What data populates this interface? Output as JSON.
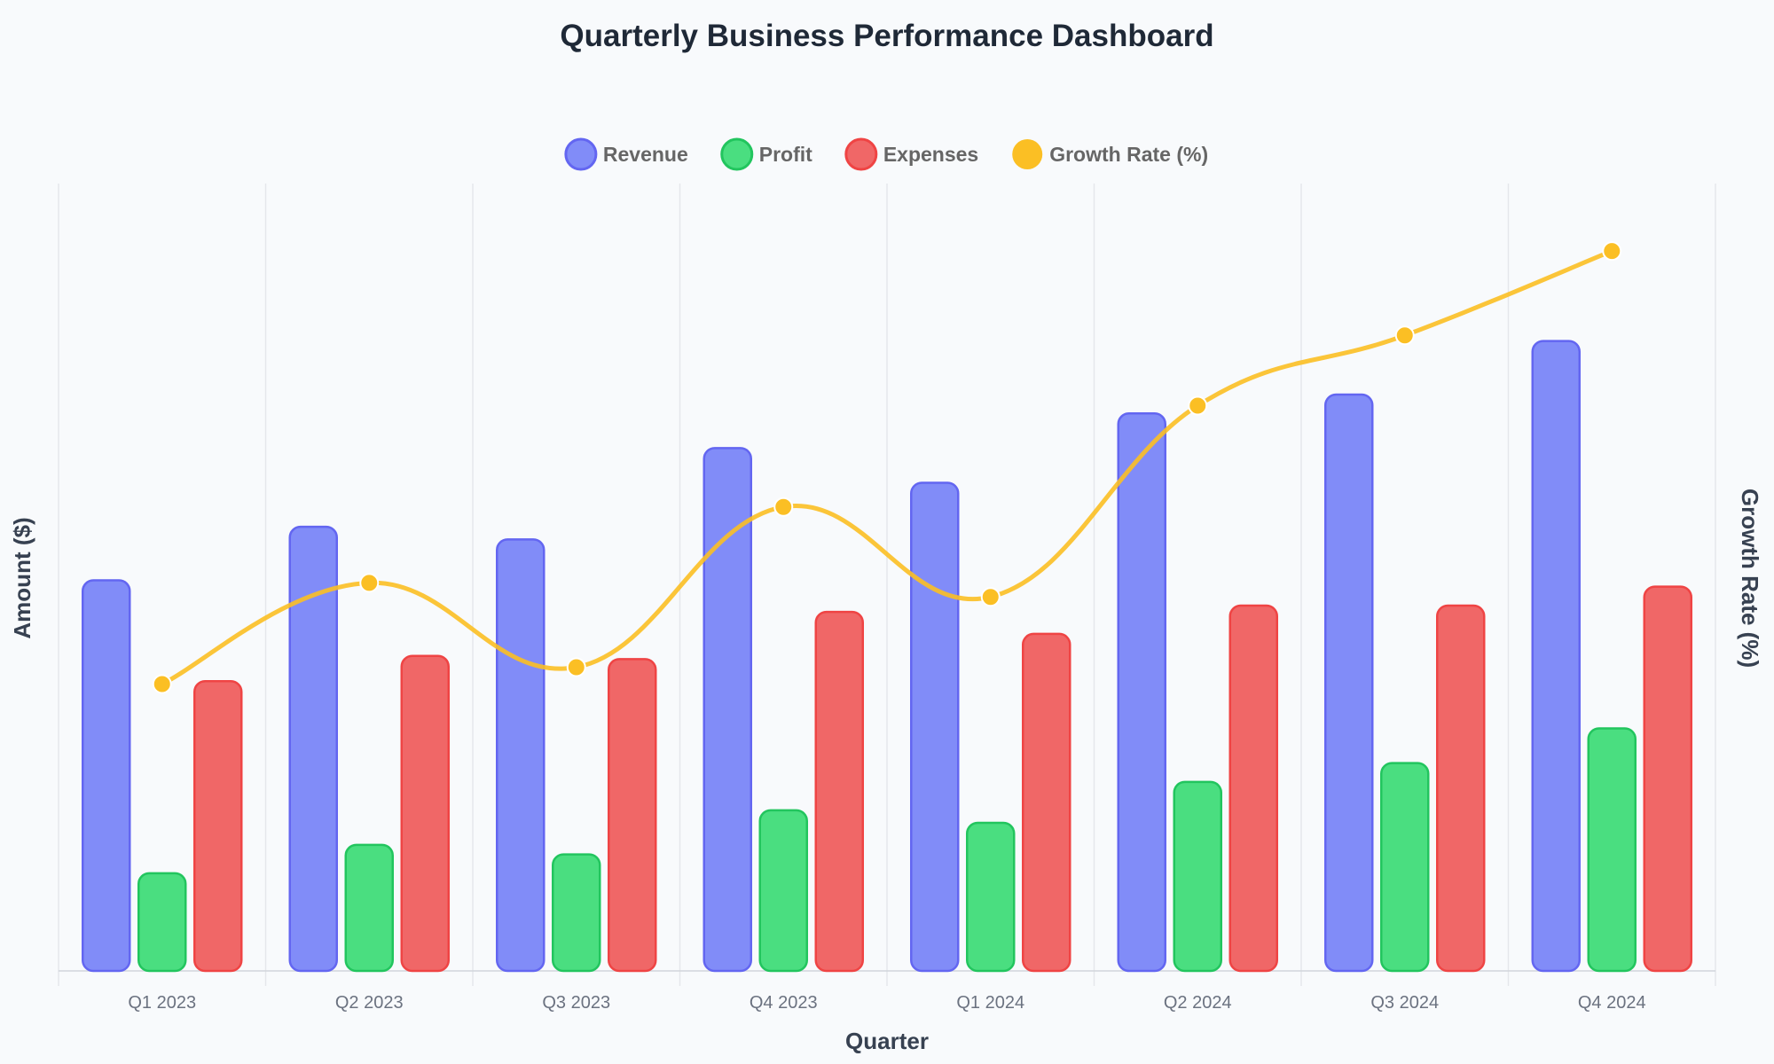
{
  "chart_data": {
    "type": "bar",
    "title": "Quarterly Business Performance Dashboard",
    "xlabel": "Quarter",
    "ylabel": "Amount ($)",
    "y2label": "Growth Rate (%)",
    "categories": [
      "Q1 2023",
      "Q2 2023",
      "Q3 2023",
      "Q4 2023",
      "Q1 2024",
      "Q2 2024",
      "Q3 2024",
      "Q4 2024"
    ],
    "series": [
      {
        "name": "Revenue",
        "type": "bar",
        "axis": "left",
        "color": "#818cf8",
        "border": "#6366f1",
        "values": [
          620,
          705,
          685,
          830,
          775,
          885,
          915,
          1000
        ]
      },
      {
        "name": "Profit",
        "type": "bar",
        "axis": "left",
        "color": "#4ade80",
        "border": "#22c55e",
        "values": [
          155,
          200,
          185,
          255,
          235,
          300,
          330,
          385
        ]
      },
      {
        "name": "Expenses",
        "type": "bar",
        "axis": "left",
        "color": "#f06767",
        "border": "#ef4444",
        "values": [
          460,
          500,
          495,
          570,
          535,
          580,
          580,
          610
        ]
      },
      {
        "name": "Growth Rate (%)",
        "type": "line",
        "axis": "right",
        "color": "#fbbf24",
        "border": "#fbbf24",
        "values": [
          5.2,
          8.8,
          5.8,
          11.5,
          8.3,
          15.1,
          17.6,
          20.6
        ]
      }
    ],
    "ylim": [
      0,
      1250
    ],
    "y2lim": [
      -5,
      23
    ],
    "grid": "vertical",
    "legend": "top-center",
    "legend_position": "top-center"
  }
}
